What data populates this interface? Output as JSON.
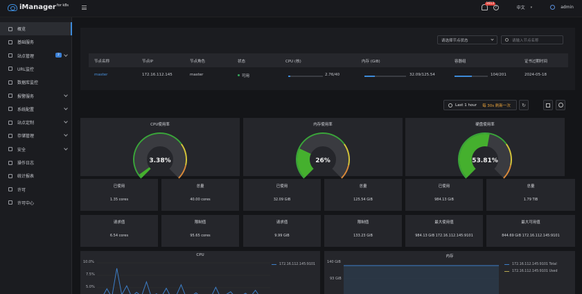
{
  "app": {
    "brand": "iManager",
    "brand_sub": "for k8s"
  },
  "topbar": {
    "notifications": "1613",
    "language": "中文",
    "user": "admin"
  },
  "sidebar": {
    "items": [
      {
        "label": "概览",
        "active": true,
        "chevron": false
      },
      {
        "label": "基础服务",
        "active": false,
        "chevron": false
      },
      {
        "label": "站点管理",
        "active": false,
        "chevron": true,
        "count": "2"
      },
      {
        "label": "URL监控",
        "active": false,
        "chevron": false
      },
      {
        "label": "数据库监控",
        "active": false,
        "chevron": false
      },
      {
        "label": "报警服务",
        "active": false,
        "chevron": true
      },
      {
        "label": "系统配置",
        "active": false,
        "chevron": true
      },
      {
        "label": "站点定制",
        "active": false,
        "chevron": true
      },
      {
        "label": "存储管理",
        "active": false,
        "chevron": true
      },
      {
        "label": "安全",
        "active": false,
        "chevron": true
      },
      {
        "label": "操作日志",
        "active": false,
        "chevron": false
      },
      {
        "label": "统计报表",
        "active": false,
        "chevron": false
      },
      {
        "label": "许可",
        "active": false,
        "chevron": false
      },
      {
        "label": "许可中心",
        "active": false,
        "chevron": false
      }
    ]
  },
  "nodes": {
    "status_select": "请选择节点状态",
    "search_placeholder": "请输入节点名称",
    "columns": [
      "节点名称",
      "节点IP",
      "节点角色",
      "状态",
      "CPU (核)",
      "内存 (GiB)",
      "容器组",
      "证书过期时间"
    ],
    "row": {
      "name": "master",
      "ip": "172.16.112.145",
      "role": "master",
      "status": "可用",
      "cpu": "2.76/40",
      "cpu_pct": 6.9,
      "mem": "32.09/125.54",
      "mem_pct": 25.6,
      "pods": "104/201",
      "pods_pct": 51.7,
      "cert": "2024-05-18"
    }
  },
  "controls": {
    "time_range": "Last 1 hour",
    "refresh": "每 30s 刷新一次"
  },
  "gauges": [
    {
      "title": "CPU使用率",
      "value": "3.38%",
      "pct": 3.38
    },
    {
      "title": "内存使用率",
      "value": "26%",
      "pct": 26
    },
    {
      "title": "硬盘使用率",
      "value": "53.81%",
      "pct": 53.81
    }
  ],
  "stats_row1": [
    {
      "label": "已使用",
      "value": "1.35 cores"
    },
    {
      "label": "总量",
      "value": "40.00 cores"
    },
    {
      "label": "已使用",
      "value": "32.09 GiB"
    },
    {
      "label": "总量",
      "value": "125.54 GiB"
    },
    {
      "label": "已使用",
      "value": "984.13 GiB"
    },
    {
      "label": "总量",
      "value": "1.79 TiB"
    }
  ],
  "stats_row2": [
    {
      "label": "请求值",
      "value": "6.54 cores"
    },
    {
      "label": "限制值",
      "value": "95.65 cores"
    },
    {
      "label": "请求值",
      "value": "9.99 GiB"
    },
    {
      "label": "限制值",
      "value": "133.23 GiB"
    },
    {
      "label": "最大使用值",
      "value": "984.13 GiB 172.16.112.145:9101"
    },
    {
      "label": "最大可用值",
      "value": "844.69 GiB 172.16.112.145:9101"
    }
  ],
  "cpu_chart": {
    "title": "CPU",
    "yticks": [
      "10.0%",
      "7.5%",
      "5.0%"
    ],
    "legend": "172.16.112.145:9101",
    "color": "#3d7fc9"
  },
  "mem_chart": {
    "title": "内存",
    "yticks": [
      "140 GiB",
      "93 GiB"
    ],
    "legend": [
      "172.16.112.145:9101 Total",
      "172.16.112.145:9101 Used"
    ],
    "colors": [
      "#3d7fc9",
      "#b8a850"
    ]
  },
  "chart_data": [
    {
      "type": "line",
      "title": "CPU",
      "y_ticks": [
        "10.0%",
        "7.5%",
        "5.0%"
      ],
      "series": [
        {
          "name": "172.16.112.145:9101",
          "values": [
            3.2,
            3.0,
            4.8,
            3.1,
            8.9,
            3.6,
            5.4,
            3.2,
            4.1,
            3.3,
            6.2,
            3.1,
            3.8,
            3.2,
            4.9,
            3.0,
            3.4,
            5.6,
            3.1,
            3.3,
            4.0,
            3.2,
            3.5,
            3.1,
            5.1,
            3.0,
            3.6,
            4.2,
            3.1,
            3.3,
            3.9,
            3.2,
            4.5,
            3.1,
            3.4,
            3.0
          ]
        }
      ]
    },
    {
      "type": "area",
      "title": "内存",
      "y_ticks": [
        "140 GiB",
        "93 GiB"
      ],
      "series": [
        {
          "name": "172.16.112.145:9101 Total",
          "values": [
            125.54,
            125.54,
            125.54,
            125.54
          ]
        },
        {
          "name": "172.16.112.145:9101 Used",
          "values": [
            32.1,
            32.1,
            32.1,
            32.1
          ]
        }
      ]
    }
  ]
}
